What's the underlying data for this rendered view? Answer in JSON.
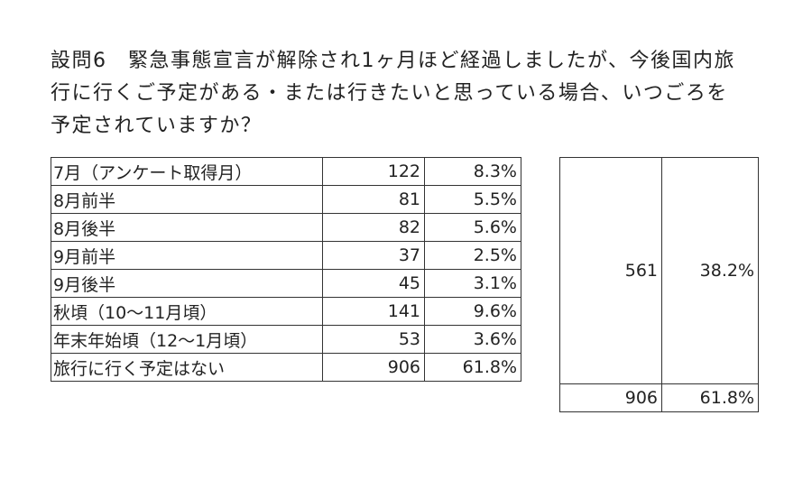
{
  "question": {
    "lines": [
      "設問6　緊急事態宣言が解除され1ヶ月ほど経過しましたが、今後国内旅",
      "行に行くご予定がある・または行きたいと思っている場合、いつごろを",
      "予定されていますか？"
    ]
  },
  "rows": [
    {
      "label": "7月（アンケート取得月）",
      "count": "122",
      "percent": "8.3%"
    },
    {
      "label": "8月前半",
      "count": "81",
      "percent": "5.5%"
    },
    {
      "label": "8月後半",
      "count": "82",
      "percent": "5.6%"
    },
    {
      "label": "9月前半",
      "count": "37",
      "percent": "2.5%"
    },
    {
      "label": "9月後半",
      "count": "45",
      "percent": "3.1%"
    },
    {
      "label": "秋頃（10〜11月頃）",
      "count": "141",
      "percent": "9.6%"
    },
    {
      "label": "年末年始頃（12〜1月頃）",
      "count": "53",
      "percent": "3.6%"
    },
    {
      "label": "旅行に行く予定はない",
      "count": "906",
      "percent": "61.8%"
    }
  ],
  "summary": {
    "plan": {
      "count": "561",
      "percent": "38.2%"
    },
    "no_plan": {
      "count": "906",
      "percent": "61.8%"
    }
  }
}
